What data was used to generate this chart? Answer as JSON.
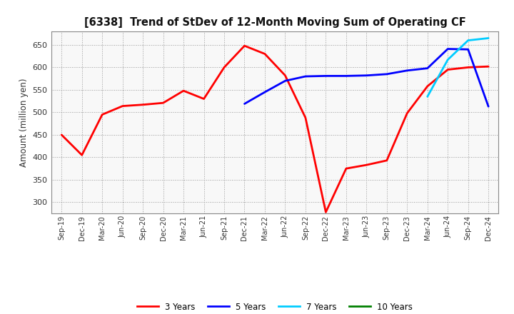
{
  "title": "[6338]  Trend of StDev of 12-Month Moving Sum of Operating CF",
  "ylabel": "Amount (million yen)",
  "ylim": [
    275,
    680
  ],
  "yticks": [
    300,
    350,
    400,
    450,
    500,
    550,
    600,
    650
  ],
  "line_colors": {
    "3yr": "#ff0000",
    "5yr": "#0000ff",
    "7yr": "#00ccff",
    "10yr": "#008000"
  },
  "legend_labels": [
    "3 Years",
    "5 Years",
    "7 Years",
    "10 Years"
  ],
  "x_labels": [
    "Sep-19",
    "Dec-19",
    "Mar-20",
    "Jun-20",
    "Sep-20",
    "Dec-20",
    "Mar-21",
    "Jun-21",
    "Sep-21",
    "Dec-21",
    "Mar-22",
    "Jun-22",
    "Sep-22",
    "Dec-22",
    "Mar-23",
    "Jun-23",
    "Sep-23",
    "Dec-23",
    "Mar-24",
    "Jun-24",
    "Sep-24",
    "Dec-24"
  ],
  "series_3yr": [
    450,
    405,
    495,
    514,
    517,
    521,
    548,
    530,
    600,
    648,
    630,
    582,
    488,
    278,
    375,
    383,
    393,
    498,
    558,
    595,
    600,
    602
  ],
  "series_5yr": [
    null,
    null,
    null,
    null,
    null,
    null,
    null,
    null,
    null,
    519,
    545,
    570,
    580,
    581,
    581,
    582,
    585,
    593,
    598,
    641,
    640,
    513
  ],
  "series_7yr": [
    null,
    null,
    null,
    null,
    null,
    null,
    null,
    null,
    null,
    null,
    null,
    null,
    null,
    null,
    null,
    null,
    null,
    null,
    535,
    617,
    660,
    665
  ],
  "series_10yr": [
    null,
    null,
    null,
    null,
    null,
    null,
    null,
    null,
    null,
    null,
    null,
    null,
    null,
    null,
    null,
    null,
    null,
    null,
    null,
    null,
    null,
    null
  ],
  "figsize": [
    7.2,
    4.4
  ],
  "dpi": 100
}
